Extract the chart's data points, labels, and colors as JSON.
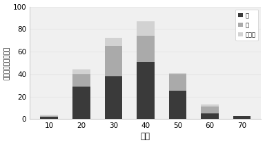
{
  "categories": [
    10,
    20,
    30,
    40,
    50,
    60,
    70
  ],
  "hiza": [
    2,
    29,
    38,
    51,
    25,
    5,
    3
  ],
  "kata": [
    1,
    11,
    27,
    23,
    15,
    6,
    0
  ],
  "sonota": [
    1,
    4,
    7,
    13,
    1,
    2,
    0
  ],
  "legend_labels_top_to_bottom": [
    "その他",
    "肩",
    "膜"
  ],
  "xlabel": "年代",
  "ylabel": "新規来院者数（人）",
  "ylim": [
    0,
    100
  ],
  "yticks": [
    0,
    20,
    40,
    60,
    80,
    100
  ],
  "color_hiza": "#3a3a3a",
  "color_kata": "#aaaaaa",
  "color_sonota": "#d2d2d2",
  "bg_color": "#ffffff",
  "plot_bg_color": "#f0f0f0",
  "grid_color": "#e8e8e8",
  "bar_width": 0.55
}
